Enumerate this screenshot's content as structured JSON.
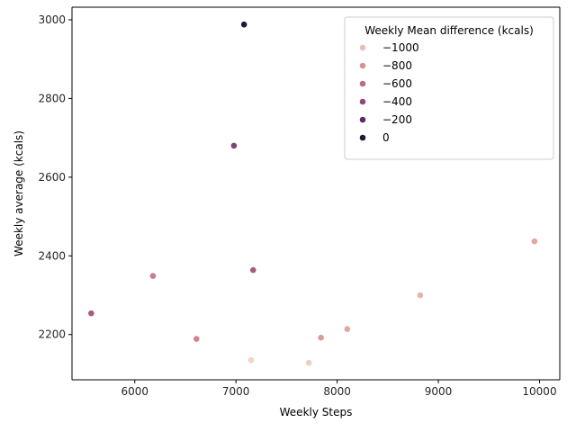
{
  "chart_data": {
    "type": "scatter",
    "title": "",
    "xlabel": "Weekly Steps",
    "ylabel": "Weekly average (kcals)",
    "xlim": [
      5380,
      10200
    ],
    "ylim": [
      2085,
      3032
    ],
    "xticks": [
      6000,
      7000,
      8000,
      9000,
      10000
    ],
    "yticks": [
      2200,
      2400,
      2600,
      2800,
      3000
    ],
    "grid": false,
    "hue_label": "Weekly Mean difference (kcals)",
    "hue_range": [
      -1080,
      0
    ],
    "legend": {
      "title": "Weekly Mean difference (kcals)",
      "placement": "upper-right",
      "entries": [
        {
          "label": "−1000",
          "value": -1000
        },
        {
          "label": "−800",
          "value": -800
        },
        {
          "label": "−600",
          "value": -600
        },
        {
          "label": "−400",
          "value": -400
        },
        {
          "label": "−200",
          "value": -200
        },
        {
          "label": "0",
          "value": 0
        }
      ]
    },
    "points": [
      {
        "x": 7080,
        "y": 2988,
        "hue": 0
      },
      {
        "x": 6980,
        "y": 2680,
        "hue": -350
      },
      {
        "x": 9950,
        "y": 2437,
        "hue": -900
      },
      {
        "x": 7170,
        "y": 2364,
        "hue": -510
      },
      {
        "x": 6180,
        "y": 2349,
        "hue": -690
      },
      {
        "x": 8820,
        "y": 2300,
        "hue": -950
      },
      {
        "x": 5570,
        "y": 2254,
        "hue": -500
      },
      {
        "x": 8100,
        "y": 2214,
        "hue": -900
      },
      {
        "x": 7840,
        "y": 2192,
        "hue": -850
      },
      {
        "x": 6610,
        "y": 2189,
        "hue": -730
      },
      {
        "x": 7150,
        "y": 2135,
        "hue": -1080
      },
      {
        "x": 7720,
        "y": 2128,
        "hue": -1050
      }
    ]
  }
}
